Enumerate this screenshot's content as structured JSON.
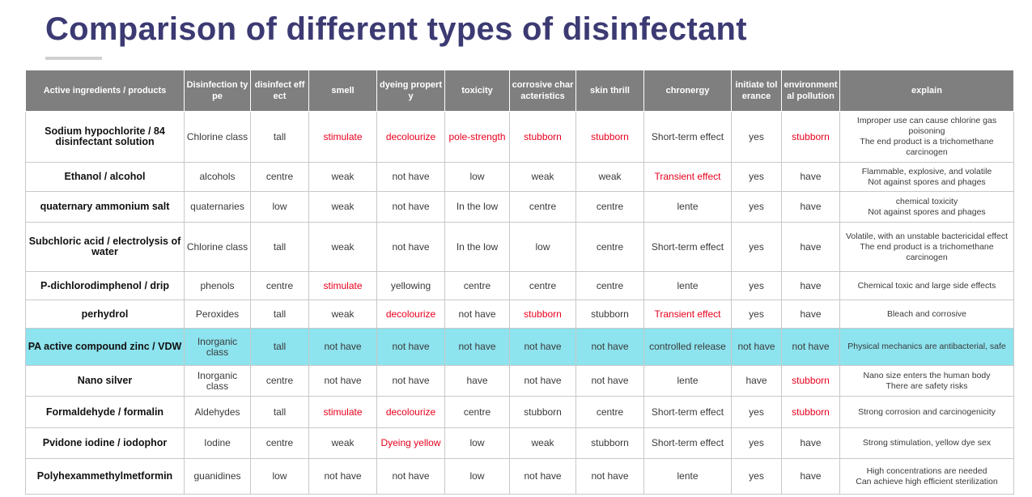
{
  "title": "Comparison of different types of disinfectant",
  "colors": {
    "title": "#3c3a72",
    "header_bg": "#7f7f7f",
    "highlight_row": "#8de3ee",
    "emphasis_text": "#e8001c"
  },
  "headers": {
    "active": "Active ingredients / products",
    "type": "Disinfection type",
    "effect": "disinfect effect",
    "smell": "smell",
    "dyeing": "dyeing property",
    "toxicity": "toxicity",
    "corrosive": "corrosive characteristics",
    "skin": "skin thrill",
    "chronergy": "chronergy",
    "tolerance": "initiate tolerance",
    "environ": "environmental pollution",
    "explain": "explain"
  },
  "rows": [
    {
      "name": "Sodium hypochlorite / 84 disinfectant solution",
      "type": "Chlorine class",
      "effect": "tall",
      "smell": "stimulate",
      "dyeing": "decolourize",
      "toxicity": "pole-strength",
      "corrosive": "stubborn",
      "skin": "stubborn",
      "chronergy": "Short-term effect",
      "tolerance": "yes",
      "environ": "stubborn",
      "explain_1": "Improper use can cause chlorine gas poisoning",
      "explain_2": "The end product is a trichomethane carcinogen"
    },
    {
      "name": "Ethanol / alcohol",
      "type": "alcohols",
      "effect": "centre",
      "smell": "weak",
      "dyeing": "not have",
      "toxicity": "low",
      "corrosive": "weak",
      "skin": "weak",
      "chronergy": "Transient effect",
      "tolerance": "yes",
      "environ": "have",
      "explain_1": "Flammable, explosive, and volatile",
      "explain_2": "Not against spores and phages"
    },
    {
      "name": "quaternary ammonium salt",
      "type": "quaternaries",
      "effect": "low",
      "smell": "weak",
      "dyeing": "not have",
      "toxicity": "In the low",
      "corrosive": "centre",
      "skin": "centre",
      "chronergy": "lente",
      "tolerance": "yes",
      "environ": "have",
      "explain_1": "chemical toxicity",
      "explain_2": "Not against spores and phages"
    },
    {
      "name": "Subchloric acid / electrolysis of water",
      "type": "Chlorine class",
      "effect": "tall",
      "smell": "weak",
      "dyeing": "not have",
      "toxicity": "In the low",
      "corrosive": "low",
      "skin": "centre",
      "chronergy": "Short-term effect",
      "tolerance": "yes",
      "environ": "have",
      "explain_1": "Volatile, with an unstable bactericidal effect",
      "explain_2": "The end product is a trichomethane carcinogen"
    },
    {
      "name": "P-dichlorodimphenol / drip",
      "type": "phenols",
      "effect": "centre",
      "smell": "stimulate",
      "dyeing": "yellowing",
      "toxicity": "centre",
      "corrosive": "centre",
      "skin": "centre",
      "chronergy": "lente",
      "tolerance": "yes",
      "environ": "have",
      "explain_1": "Chemical toxic and large side effects",
      "explain_2": ""
    },
    {
      "name": "perhydrol",
      "type": "Peroxides",
      "effect": "tall",
      "smell": "weak",
      "dyeing": "decolourize",
      "toxicity": "not have",
      "corrosive": "stubborn",
      "skin": "stubborn",
      "chronergy": "Transient effect",
      "tolerance": "yes",
      "environ": "have",
      "explain_1": "Bleach and corrosive",
      "explain_2": ""
    },
    {
      "name": "PA active compound zinc / VDW",
      "type": "Inorganic class",
      "effect": "tall",
      "smell": "not have",
      "dyeing": "not have",
      "toxicity": "not have",
      "corrosive": "not have",
      "skin": "not have",
      "chronergy": "controlled release",
      "tolerance": "not have",
      "environ": "not have",
      "explain_1": "Physical mechanics are antibacterial, safe",
      "explain_2": ""
    },
    {
      "name": "Nano silver",
      "type": "Inorganic class",
      "effect": "centre",
      "smell": "not have",
      "dyeing": "not have",
      "toxicity": "have",
      "corrosive": "not have",
      "skin": "not have",
      "chronergy": "lente",
      "tolerance": "have",
      "environ": "stubborn",
      "explain_1": "Nano size enters the human body",
      "explain_2": "There are safety risks"
    },
    {
      "name": "Formaldehyde / formalin",
      "type": "Aldehydes",
      "effect": "tall",
      "smell": "stimulate",
      "dyeing": "decolourize",
      "toxicity": "centre",
      "corrosive": "stubborn",
      "skin": "centre",
      "chronergy": "Short-term effect",
      "tolerance": "yes",
      "environ": "stubborn",
      "explain_1": "Strong corrosion and carcinogenicity",
      "explain_2": ""
    },
    {
      "name": "Pvidone iodine / iodophor",
      "type": "Iodine",
      "effect": "centre",
      "smell": "weak",
      "dyeing": "Dyeing yellow",
      "toxicity": "low",
      "corrosive": "weak",
      "skin": "stubborn",
      "chronergy": "Short-term effect",
      "tolerance": "yes",
      "environ": "have",
      "explain_1": "Strong stimulation, yellow dye sex",
      "explain_2": ""
    },
    {
      "name": "Polyhexammethylmetformin",
      "type": "guanidines",
      "effect": "low",
      "smell": "not have",
      "dyeing": "not have",
      "toxicity": "low",
      "corrosive": "not have",
      "skin": "not have",
      "chronergy": "lente",
      "tolerance": "yes",
      "environ": "have",
      "explain_1": "High concentrations are needed",
      "explain_2": "Can achieve high efficient sterilization"
    }
  ]
}
